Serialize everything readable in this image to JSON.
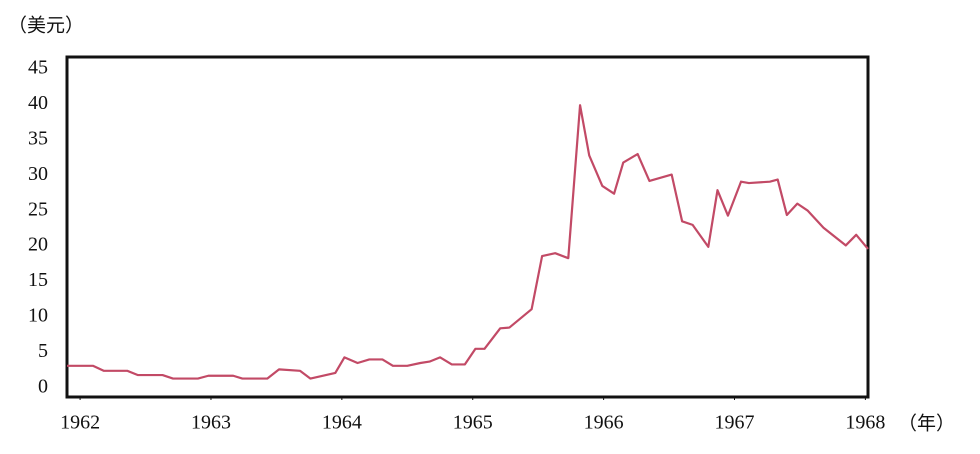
{
  "chart_data": {
    "type": "line",
    "y_label": "（美元）",
    "x_label": "（年）",
    "x": [
      1961.9,
      1962.1,
      1962.18,
      1962.36,
      1962.44,
      1962.63,
      1962.71,
      1962.9,
      1962.98,
      1963.17,
      1963.24,
      1963.43,
      1963.52,
      1963.68,
      1963.76,
      1963.95,
      1964.02,
      1964.12,
      1964.21,
      1964.31,
      1964.39,
      1964.5,
      1964.6,
      1964.67,
      1964.75,
      1964.84,
      1964.94,
      1965.02,
      1965.09,
      1965.21,
      1965.28,
      1965.45,
      1965.53,
      1965.63,
      1965.73,
      1965.82,
      1965.89,
      1965.99,
      1966.08,
      1966.15,
      1966.26,
      1966.35,
      1966.52,
      1966.6,
      1966.68,
      1966.8,
      1966.87,
      1966.95,
      1967.05,
      1967.11,
      1967.27,
      1967.33,
      1967.4,
      1967.48,
      1967.56,
      1967.68,
      1967.85,
      1967.93,
      1968.02
    ],
    "series": [
      {
        "color": "#c24a66",
        "values": [
          3.1,
          3.1,
          2.4,
          2.4,
          1.8,
          1.8,
          1.3,
          1.3,
          1.7,
          1.7,
          1.3,
          1.3,
          2.6,
          2.4,
          1.3,
          2.1,
          4.3,
          3.5,
          4.0,
          4.0,
          3.1,
          3.1,
          3.5,
          3.7,
          4.3,
          3.3,
          3.3,
          5.5,
          5.5,
          8.4,
          8.5,
          11.1,
          18.6,
          19.0,
          18.3,
          39.9,
          32.8,
          28.5,
          27.4,
          31.8,
          33.0,
          29.2,
          30.1,
          23.5,
          23.0,
          19.9,
          27.9,
          24.3,
          29.1,
          28.9,
          29.1,
          29.4,
          24.4,
          26.0,
          25.0,
          22.6,
          20.1,
          21.6,
          19.6
        ]
      }
    ],
    "xlim": [
      1961.9,
      1968.02
    ],
    "ylim": [
      -1.3,
      46.7
    ],
    "xticks": [
      1962,
      1963,
      1964,
      1965,
      1966,
      1967,
      1968
    ],
    "yticks": [
      0,
      5,
      10,
      15,
      20,
      25,
      30,
      35,
      40,
      45
    ],
    "grid": false
  }
}
